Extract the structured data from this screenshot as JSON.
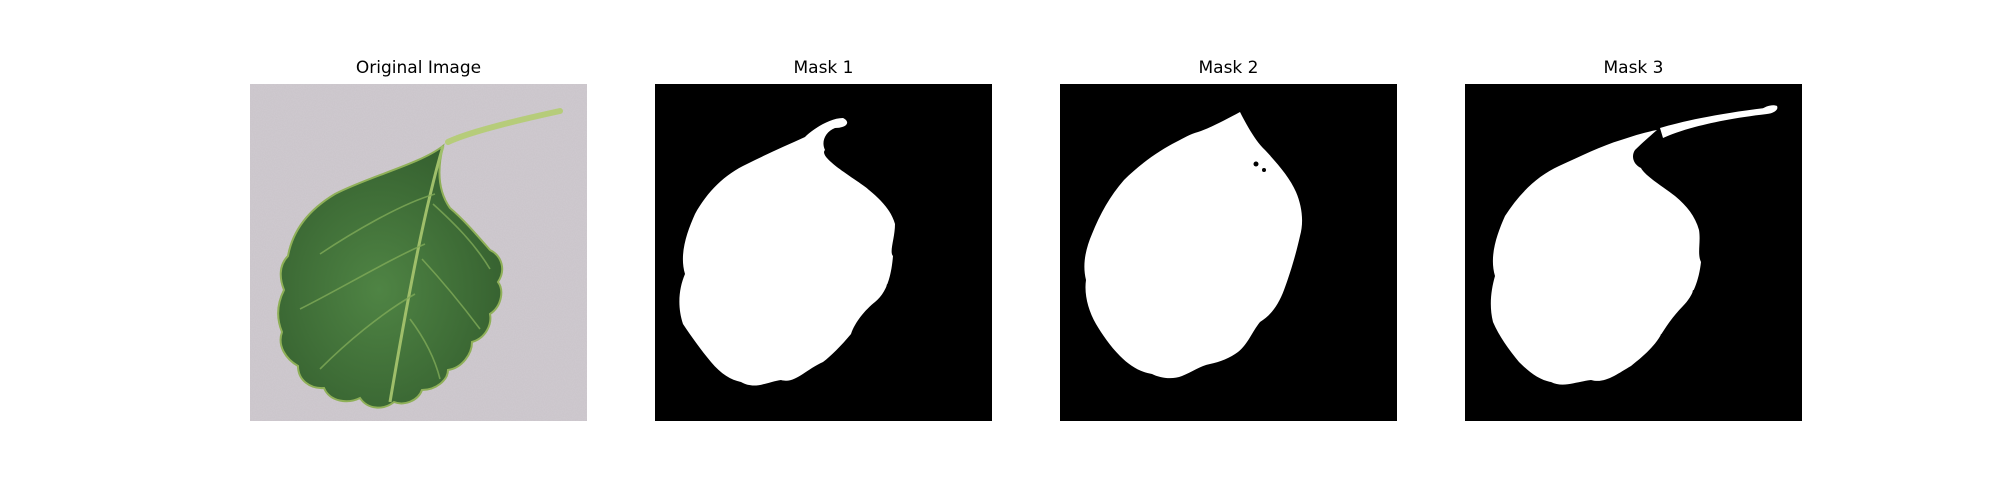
{
  "panels": [
    {
      "title": "Original Image",
      "kind": "photo"
    },
    {
      "title": "Mask 1",
      "kind": "mask"
    },
    {
      "title": "Mask 2",
      "kind": "mask"
    },
    {
      "title": "Mask 3",
      "kind": "mask"
    }
  ],
  "colors": {
    "background_photo": "#c9c3c9",
    "leaf_dark": "#3a6a34",
    "leaf_mid": "#4f8444",
    "leaf_vein": "#9fbf6a",
    "stem": "#b6cc7a",
    "mask_bg": "#000000",
    "mask_fg": "#ffffff"
  }
}
